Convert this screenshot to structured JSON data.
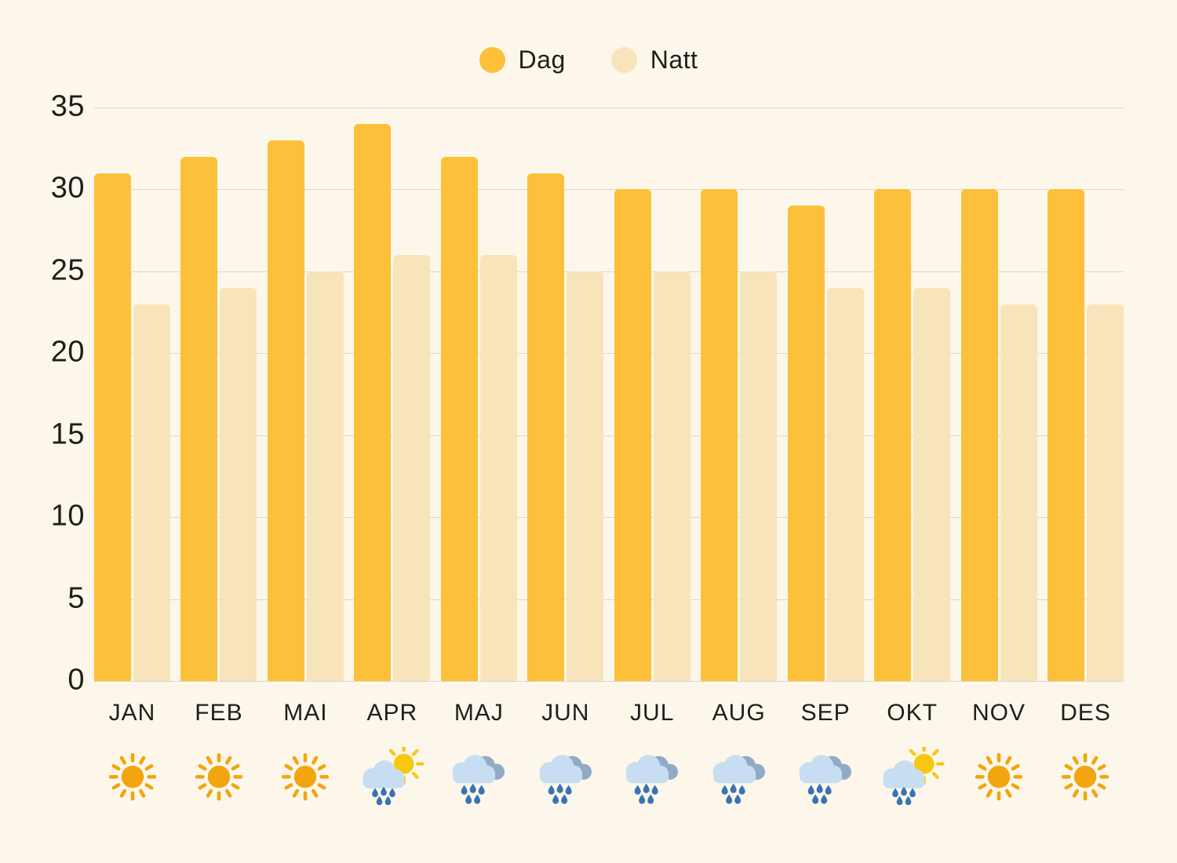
{
  "legend": {
    "items": [
      {
        "label": "Dag",
        "color": "#FDC03A"
      },
      {
        "label": "Natt",
        "color": "#F8E4BB"
      }
    ]
  },
  "chart_data": {
    "type": "bar",
    "title": "",
    "xlabel": "",
    "ylabel": "",
    "categories": [
      "JAN",
      "FEB",
      "MAI",
      "APR",
      "MAJ",
      "JUN",
      "JUL",
      "AUG",
      "SEP",
      "OKT",
      "NOV",
      "DES"
    ],
    "series": [
      {
        "name": "Dag",
        "color": "#FDC03A",
        "values": [
          31,
          32,
          33,
          34,
          32,
          31,
          30,
          30,
          29,
          30,
          30,
          30
        ]
      },
      {
        "name": "Natt",
        "color": "#F8E4BB",
        "values": [
          23,
          24,
          25,
          26,
          26,
          25,
          25,
          25,
          24,
          24,
          23,
          23
        ]
      }
    ],
    "weather_icons": [
      "sun",
      "sun",
      "sun",
      "sun-shower",
      "rain",
      "rain",
      "rain",
      "rain",
      "rain",
      "sun-shower",
      "sun",
      "sun"
    ],
    "y_ticks": [
      35,
      30,
      25,
      20,
      15,
      10,
      5,
      0
    ],
    "ylim": [
      0,
      35
    ],
    "grid": true,
    "legend_position": "top"
  },
  "colors": {
    "background": "#FCF7EA",
    "text": "#1E1E1C",
    "gridline": "#DBD7CA",
    "icon_sun": "#F2A50F",
    "icon_shower_sun": "#F8C70F",
    "icon_cloud_front": "#C7DEF2",
    "icon_cloud_back": "#93AAC6",
    "icon_raindrop": "#3973B3"
  }
}
